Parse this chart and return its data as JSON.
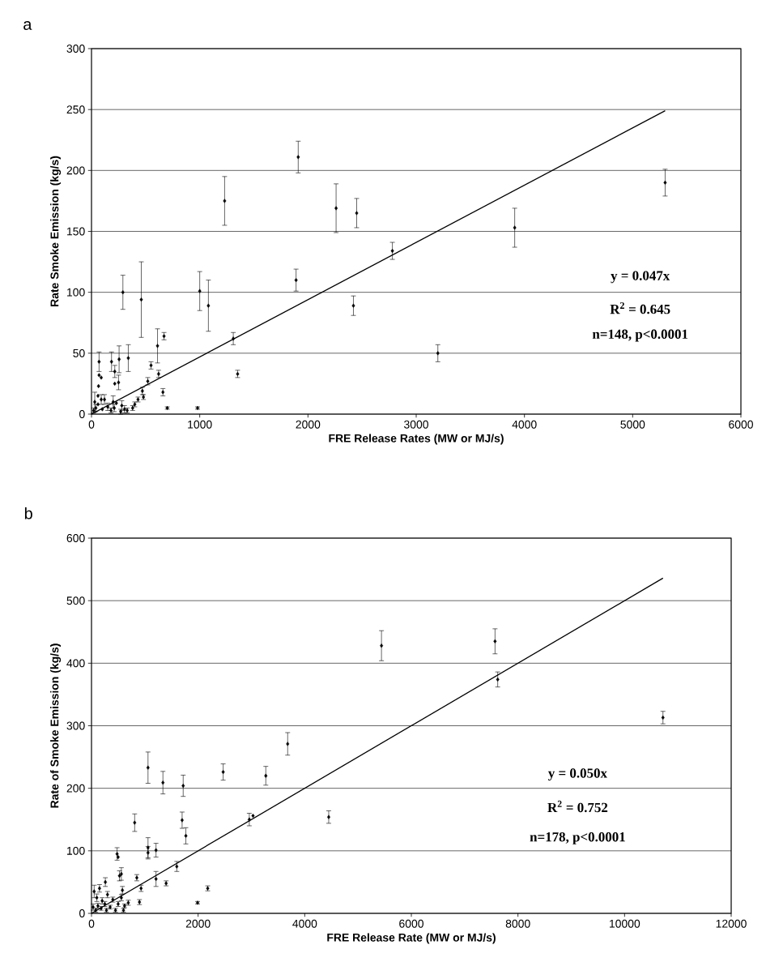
{
  "chart_data": [
    {
      "type": "scatter",
      "title": "a",
      "xlabel": "FRE Release Rates (MW or MJ/s)",
      "ylabel": "Rate Smoke Emission (kg/s)",
      "xlim": [
        0,
        6000
      ],
      "ylim": [
        0,
        300
      ],
      "xticks": [
        0,
        1000,
        2000,
        3000,
        4000,
        5000,
        6000
      ],
      "yticks": [
        0,
        50,
        100,
        150,
        200,
        250,
        300
      ],
      "grid": "y",
      "marker": "diamond",
      "annotations": [
        "y = 0.047x",
        "R$^{2}$ = 0.645",
        "n=148, p<0.0001"
      ],
      "series": [
        {
          "type": "scatter",
          "color": "#000000",
          "x": [
            5300,
            3910,
            3200,
            2780,
            2450,
            2420,
            2260,
            1910,
            1890,
            1230,
            1310,
            1350,
            1000,
            1080,
            980,
            290,
            460,
            340,
            610,
            670,
            550,
            620,
            520,
            660,
            700,
            470,
            480,
            430,
            400,
            255,
            185,
            70,
            70,
            215,
            250,
            215,
            90,
            65,
            30,
            200,
            230,
            280,
            305,
            20,
            40,
            60,
            100,
            120,
            150,
            180,
            210,
            270,
            330,
            380,
            60,
            90
          ],
          "values": [
            190,
            153,
            50,
            134,
            165,
            89,
            169,
            211,
            110,
            175,
            62,
            33,
            101,
            89,
            5,
            100,
            94,
            46,
            56,
            64,
            40,
            33,
            27,
            18,
            5,
            19,
            14,
            12,
            8,
            45,
            43,
            43,
            32,
            35,
            26,
            25,
            30,
            23,
            10,
            10,
            9,
            7,
            4,
            3,
            5,
            8,
            4,
            12,
            6,
            3,
            5,
            2,
            3,
            5,
            15,
            12
          ],
          "errors": [
            11,
            16,
            7,
            7,
            12,
            8,
            20,
            13,
            9,
            20,
            5,
            3,
            16,
            21,
            1,
            14,
            31,
            11,
            14,
            3,
            3,
            3,
            3,
            3,
            1,
            3,
            2,
            2,
            2,
            11,
            8,
            8,
            null,
            5,
            6,
            null,
            null,
            null,
            8,
            5,
            null,
            4,
            3,
            2,
            3,
            null,
            null,
            4,
            3,
            2,
            3,
            2,
            2,
            2,
            null,
            4
          ]
        },
        {
          "type": "line",
          "color": "#000000",
          "marker": "none",
          "x": [
            0,
            5300
          ],
          "values": [
            0,
            249
          ]
        }
      ]
    },
    {
      "type": "scatter",
      "title": "b",
      "xlabel": "FRE Release Rate (MW or MJ/s)",
      "ylabel": "Rate of Smoke Emission (kg/s)",
      "xlim": [
        0,
        12000
      ],
      "ylim": [
        0,
        600
      ],
      "xticks": [
        0,
        2000,
        4000,
        6000,
        8000,
        10000,
        12000
      ],
      "yticks": [
        0,
        100,
        200,
        300,
        400,
        500,
        600
      ],
      "grid": "y",
      "marker": "diamond",
      "annotations": [
        "y = 0.050x",
        "R$^{2}$ = 0.752",
        "n=178, p<0.0001"
      ],
      "series": [
        {
          "type": "scatter",
          "color": "#000000",
          "x": [
            10720,
            7570,
            7620,
            5440,
            4450,
            3680,
            3270,
            3030,
            2960,
            2470,
            2180,
            1990,
            1720,
            1700,
            1770,
            1600,
            1400,
            1340,
            1060,
            1060,
            1060,
            1210,
            1210,
            810,
            930,
            850,
            900,
            480,
            500,
            560,
            525,
            580,
            560,
            690,
            620,
            260,
            50,
            100,
            150,
            200,
            250,
            300,
            350,
            400,
            450,
            500,
            30,
            80,
            120,
            180,
            600,
            280
          ],
          "values": [
            313,
            435,
            374,
            428,
            154,
            271,
            220,
            156,
            150,
            226,
            40,
            17,
            204,
            149,
            124,
            75,
            48,
            209,
            233,
            105,
            97,
            101,
            55,
            145,
            40,
            57,
            18,
            95,
            90,
            63,
            60,
            37,
            25,
            17,
            12,
            50,
            35,
            25,
            40,
            20,
            15,
            30,
            10,
            22,
            5,
            15,
            10,
            5,
            12,
            8,
            5,
            5
          ],
          "errors": [
            10,
            20,
            12,
            24,
            10,
            18,
            15,
            null,
            10,
            13,
            4,
            2,
            17,
            13,
            13,
            8,
            4,
            18,
            25,
            16,
            10,
            11,
            12,
            14,
            5,
            5,
            4,
            10,
            null,
            10,
            8,
            6,
            5,
            4,
            3,
            7,
            10,
            6,
            6,
            5,
            4,
            5,
            3,
            4,
            3,
            4,
            5,
            3,
            4,
            3,
            3,
            3
          ]
        },
        {
          "type": "line",
          "color": "#000000",
          "marker": "none",
          "x": [
            0,
            10720
          ],
          "values": [
            0,
            536
          ]
        }
      ]
    }
  ]
}
